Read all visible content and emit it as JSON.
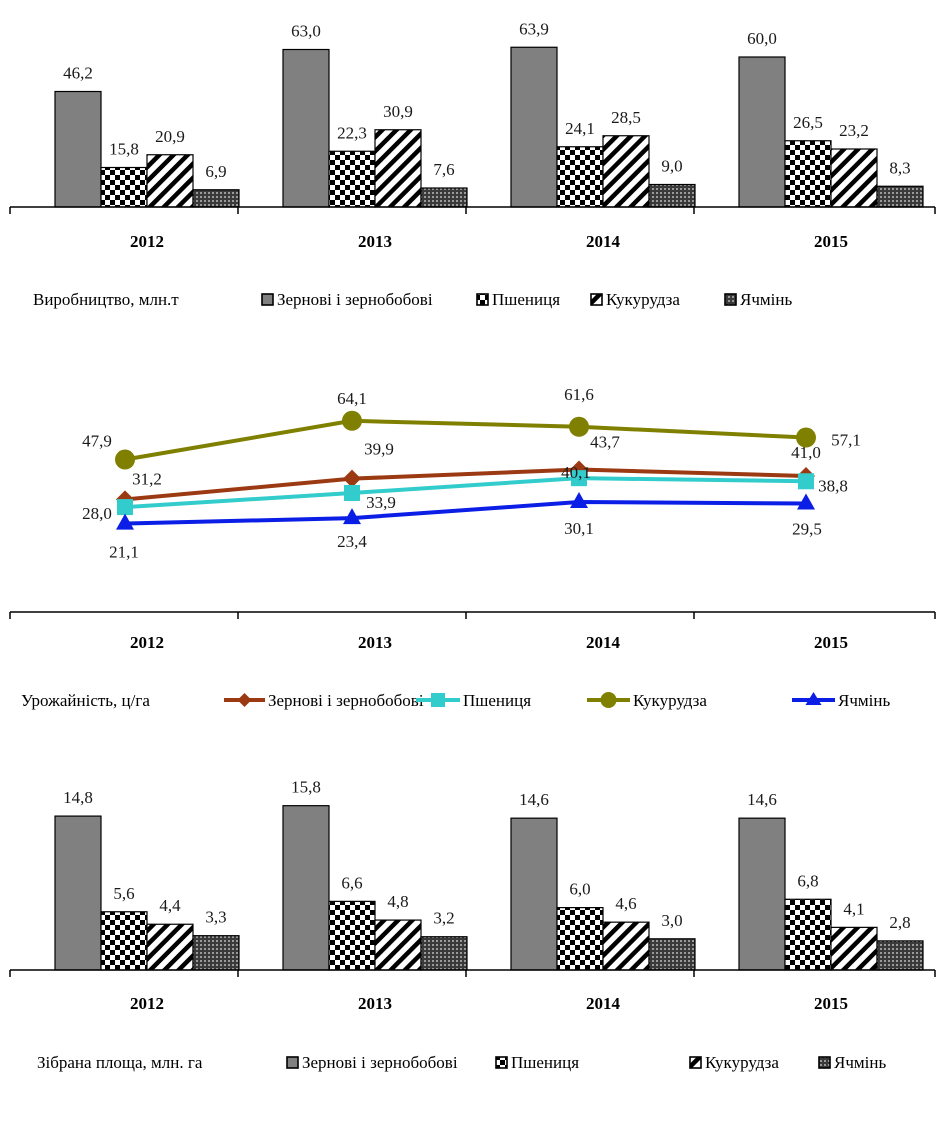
{
  "chart_data": [
    {
      "type": "bar",
      "legend_title": "Виробництво, млн.т",
      "categories": [
        "2012",
        "2013",
        "2014",
        "2015"
      ],
      "series": [
        {
          "name": "Зернові і зернобобові",
          "values": [
            46.2,
            63.0,
            63.9,
            60.0
          ],
          "labels": [
            "46,2",
            "63,0",
            "63,9",
            "60,0"
          ],
          "pattern": "solid-gray"
        },
        {
          "name": "Пшениця",
          "values": [
            15.8,
            22.3,
            24.1,
            26.5
          ],
          "labels": [
            "15,8",
            "22,3",
            "24,1",
            "26,5"
          ],
          "pattern": "checker"
        },
        {
          "name": "Кукурудза",
          "values": [
            20.9,
            30.9,
            28.5,
            23.2
          ],
          "labels": [
            "20,9",
            "30,9",
            "28,5",
            "23,2"
          ],
          "pattern": "diagonal"
        },
        {
          "name": "Ячмінь",
          "values": [
            6.9,
            7.6,
            9.0,
            8.3
          ],
          "labels": [
            "6,9",
            "7,6",
            "9,0",
            "8,3"
          ],
          "pattern": "dots"
        }
      ],
      "legend_position": "bottom"
    },
    {
      "type": "line",
      "legend_title": "Урожайність, ц/га",
      "categories": [
        "2012",
        "2013",
        "2014",
        "2015"
      ],
      "series": [
        {
          "name": "Зернові і зернобобові",
          "values": [
            31.2,
            39.9,
            43.7,
            41.0
          ],
          "labels": [
            "31,2",
            "39,9",
            "43,7",
            "41,0"
          ],
          "color": "#9b3a12",
          "marker": "diamond"
        },
        {
          "name": "Пшениця",
          "values": [
            28.0,
            33.9,
            40.1,
            38.8
          ],
          "labels": [
            "28,0",
            "33,9",
            "40,1",
            "38,8"
          ],
          "color": "#33cccc",
          "marker": "square"
        },
        {
          "name": "Кукурудза",
          "values": [
            47.9,
            64.1,
            61.6,
            57.1
          ],
          "labels": [
            "47,9",
            "64,1",
            "61,6",
            "57,1"
          ],
          "color": "#808000",
          "marker": "circle"
        },
        {
          "name": "Ячмінь",
          "values": [
            21.1,
            23.4,
            30.1,
            29.5
          ],
          "labels": [
            "21,1",
            "23,4",
            "30,1",
            "29,5"
          ],
          "color": "#0a1ee6",
          "marker": "triangle"
        }
      ],
      "legend_position": "bottom"
    },
    {
      "type": "bar",
      "legend_title": "Зібрана площа, млн. га",
      "categories": [
        "2012",
        "2013",
        "2014",
        "2015"
      ],
      "series": [
        {
          "name": "Зернові і зернобобові",
          "values": [
            14.8,
            15.8,
            14.6,
            14.6
          ],
          "labels": [
            "14,8",
            "15,8",
            "14,6",
            "14,6"
          ],
          "pattern": "solid-gray"
        },
        {
          "name": "Пшениця",
          "values": [
            5.6,
            6.6,
            6.0,
            6.8
          ],
          "labels": [
            "5,6",
            "6,6",
            "6,0",
            "6,8"
          ],
          "pattern": "checker"
        },
        {
          "name": "Кукурудза",
          "values": [
            4.4,
            4.8,
            4.6,
            4.1
          ],
          "labels": [
            "4,4",
            "4,8",
            "4,6",
            "4,1"
          ],
          "pattern": "diagonal"
        },
        {
          "name": "Ячмінь",
          "values": [
            3.3,
            3.2,
            3.0,
            2.8
          ],
          "labels": [
            "3,3",
            "3,2",
            "3,0",
            "2,8"
          ],
          "pattern": "dots"
        }
      ],
      "legend_position": "bottom"
    }
  ]
}
